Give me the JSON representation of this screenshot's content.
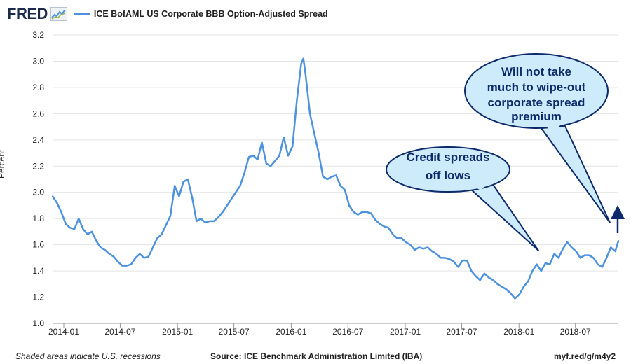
{
  "header": {
    "logo_text": "FRED",
    "logo_icon": "fred-mini-chart-icon",
    "series_label": "ICE BofAML US Corporate BBB Option-Adjusted Spread",
    "series_color": "#4c92df"
  },
  "chart_data": {
    "type": "line",
    "title": "ICE BofAML US Corporate BBB Option-Adjusted Spread",
    "ylabel": "Percent",
    "xlabel": "",
    "ylim": [
      1.0,
      3.2
    ],
    "yticks": [
      "1.0",
      "1.2",
      "1.4",
      "1.6",
      "1.8",
      "2.0",
      "2.2",
      "2.4",
      "2.6",
      "2.8",
      "3.0",
      "3.2"
    ],
    "xlim": [
      "2013-11-26",
      "2018-11-16"
    ],
    "xticks": [
      "2014-01",
      "2014-07",
      "2015-01",
      "2015-07",
      "2016-01",
      "2016-07",
      "2017-01",
      "2017-07",
      "2018-01",
      "2018-07"
    ],
    "grid": true,
    "series": [
      {
        "name": "ICE BofAML US Corporate BBB Option-Adjusted Spread",
        "color": "#4c92df",
        "x": [
          "2013-11-26",
          "2013-12-10",
          "2013-12-24",
          "2014-01-07",
          "2014-01-21",
          "2014-02-04",
          "2014-02-18",
          "2014-03-04",
          "2014-03-18",
          "2014-04-01",
          "2014-04-15",
          "2014-04-29",
          "2014-05-13",
          "2014-05-27",
          "2014-06-10",
          "2014-06-24",
          "2014-07-08",
          "2014-07-22",
          "2014-08-05",
          "2014-08-19",
          "2014-09-02",
          "2014-09-16",
          "2014-09-30",
          "2014-10-14",
          "2014-10-28",
          "2014-11-11",
          "2014-11-25",
          "2014-12-09",
          "2014-12-23",
          "2015-01-06",
          "2015-01-20",
          "2015-02-03",
          "2015-02-17",
          "2015-03-03",
          "2015-03-17",
          "2015-03-31",
          "2015-04-14",
          "2015-04-28",
          "2015-05-12",
          "2015-05-26",
          "2015-06-09",
          "2015-06-23",
          "2015-07-07",
          "2015-07-21",
          "2015-08-04",
          "2015-08-18",
          "2015-09-01",
          "2015-09-15",
          "2015-09-29",
          "2015-10-13",
          "2015-10-27",
          "2015-11-10",
          "2015-11-24",
          "2015-12-08",
          "2015-12-22",
          "2016-01-05",
          "2016-01-19",
          "2016-02-02",
          "2016-02-09",
          "2016-02-16",
          "2016-03-01",
          "2016-03-15",
          "2016-03-29",
          "2016-04-12",
          "2016-04-26",
          "2016-05-10",
          "2016-05-24",
          "2016-06-07",
          "2016-06-21",
          "2016-07-05",
          "2016-07-19",
          "2016-08-02",
          "2016-08-16",
          "2016-08-30",
          "2016-09-13",
          "2016-09-27",
          "2016-10-11",
          "2016-10-25",
          "2016-11-08",
          "2016-11-22",
          "2016-12-06",
          "2016-12-20",
          "2017-01-03",
          "2017-01-17",
          "2017-01-31",
          "2017-02-14",
          "2017-02-28",
          "2017-03-14",
          "2017-03-28",
          "2017-04-11",
          "2017-04-25",
          "2017-05-09",
          "2017-05-23",
          "2017-06-06",
          "2017-06-20",
          "2017-07-04",
          "2017-07-18",
          "2017-08-01",
          "2017-08-15",
          "2017-08-29",
          "2017-09-12",
          "2017-09-26",
          "2017-10-10",
          "2017-10-24",
          "2017-11-07",
          "2017-11-21",
          "2017-12-05",
          "2017-12-19",
          "2018-01-02",
          "2018-01-16",
          "2018-01-30",
          "2018-02-13",
          "2018-02-27",
          "2018-03-13",
          "2018-03-27",
          "2018-04-10",
          "2018-04-24",
          "2018-05-08",
          "2018-05-22",
          "2018-06-05",
          "2018-06-19",
          "2018-07-03",
          "2018-07-17",
          "2018-07-31",
          "2018-08-14",
          "2018-08-28",
          "2018-09-11",
          "2018-09-25",
          "2018-10-09",
          "2018-10-23",
          "2018-11-06",
          "2018-11-16"
        ],
        "values": [
          1.97,
          1.92,
          1.85,
          1.76,
          1.73,
          1.72,
          1.8,
          1.72,
          1.68,
          1.7,
          1.63,
          1.58,
          1.56,
          1.53,
          1.51,
          1.47,
          1.44,
          1.44,
          1.45,
          1.5,
          1.53,
          1.5,
          1.51,
          1.58,
          1.65,
          1.68,
          1.75,
          1.82,
          2.05,
          1.97,
          2.08,
          2.1,
          1.96,
          1.78,
          1.8,
          1.77,
          1.78,
          1.78,
          1.81,
          1.85,
          1.9,
          1.95,
          2.0,
          2.05,
          2.15,
          2.27,
          2.28,
          2.25,
          2.38,
          2.22,
          2.2,
          2.24,
          2.28,
          2.42,
          2.28,
          2.35,
          2.7,
          2.98,
          3.02,
          2.9,
          2.6,
          2.45,
          2.3,
          2.12,
          2.1,
          2.12,
          2.13,
          2.05,
          2.02,
          1.9,
          1.85,
          1.83,
          1.85,
          1.85,
          1.84,
          1.79,
          1.76,
          1.74,
          1.73,
          1.68,
          1.65,
          1.65,
          1.62,
          1.6,
          1.56,
          1.58,
          1.57,
          1.58,
          1.55,
          1.53,
          1.5,
          1.5,
          1.49,
          1.47,
          1.43,
          1.48,
          1.48,
          1.4,
          1.36,
          1.33,
          1.38,
          1.35,
          1.33,
          1.3,
          1.28,
          1.26,
          1.23,
          1.19,
          1.22,
          1.28,
          1.32,
          1.4,
          1.45,
          1.4,
          1.46,
          1.45,
          1.53,
          1.5,
          1.57,
          1.62,
          1.58,
          1.55,
          1.5,
          1.52,
          1.52,
          1.5,
          1.45,
          1.43,
          1.5,
          1.58,
          1.55,
          1.63
        ]
      }
    ],
    "annotations": [
      {
        "text_lines": [
          "Credit spreads",
          "off lows"
        ]
      },
      {
        "text_lines": [
          "Will not take",
          "much to wipe-out",
          "corporate spread",
          "premium"
        ]
      }
    ]
  },
  "footer": {
    "left": "Shaded areas indicate U.S. recessions",
    "source": "Source: ICE Benchmark Administration Limited (IBA)",
    "url": "myf.red/g/m4y2"
  }
}
